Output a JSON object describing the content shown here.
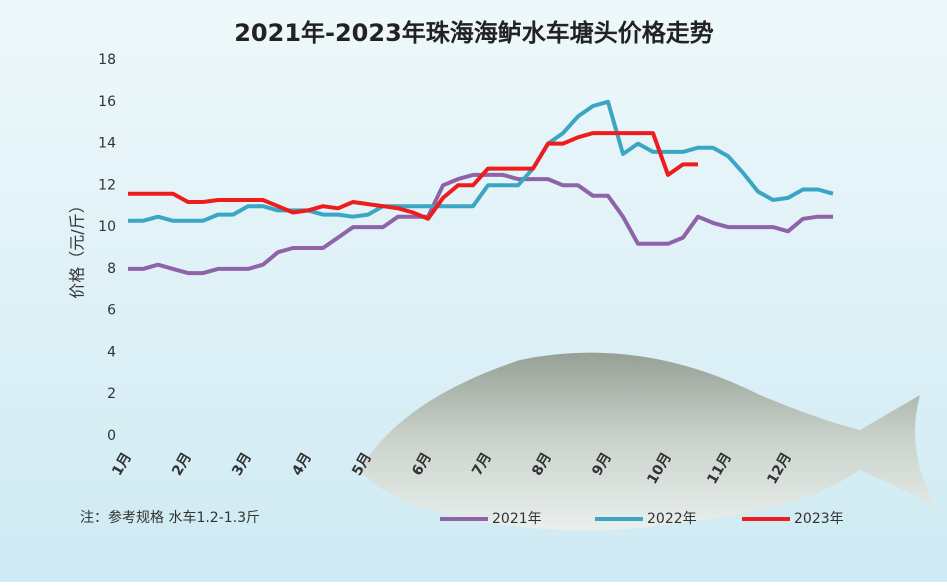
{
  "chart_data": {
    "type": "line",
    "title": "2021年-2023年珠海海鲈水车塘头价格走势",
    "y_label": "价格（元/斤）",
    "note": "注：参考规格  水车1.2-1.3斤",
    "categories": [
      "1月",
      null,
      null,
      null,
      "2月",
      null,
      null,
      null,
      "3月",
      null,
      null,
      null,
      "4月",
      null,
      null,
      null,
      "5月",
      null,
      null,
      null,
      "6月",
      null,
      null,
      null,
      "7月",
      null,
      null,
      null,
      "8月",
      null,
      null,
      null,
      "9月",
      null,
      null,
      null,
      "10月",
      null,
      null,
      null,
      "11月",
      null,
      null,
      null,
      "12月",
      null,
      null,
      null
    ],
    "series": [
      {
        "name": "2021年",
        "color": "#8e63a8",
        "values": [
          8,
          8,
          8.2,
          8,
          7.8,
          7.8,
          8,
          8,
          8,
          8.2,
          8.8,
          9,
          9,
          9,
          9.5,
          10,
          10,
          10,
          10.5,
          10.5,
          10.5,
          12,
          12.3,
          12.5,
          12.5,
          12.5,
          12.3,
          12.3,
          12.3,
          12,
          12,
          11.5,
          11.5,
          10.5,
          9.2,
          9.2,
          9.2,
          9.5,
          10.5,
          10.2,
          10,
          10,
          10,
          10,
          9.8,
          10.4,
          10.5,
          10.5
        ]
      },
      {
        "name": "2022年",
        "color": "#3aa6c4",
        "values": [
          10.3,
          10.3,
          10.5,
          10.3,
          10.3,
          10.3,
          10.6,
          10.6,
          11,
          11,
          10.8,
          10.8,
          10.8,
          10.6,
          10.6,
          10.5,
          10.6,
          11,
          11,
          11,
          11,
          11,
          11,
          11,
          12,
          12,
          12,
          12.8,
          14,
          14.5,
          15.3,
          15.8,
          16,
          13.5,
          14,
          13.6,
          13.6,
          13.6,
          13.8,
          13.8,
          13.4,
          12.6,
          11.7,
          11.3,
          11.4,
          11.8,
          11.8,
          11.6
        ]
      },
      {
        "name": "2023年",
        "color": "#ee1c1c",
        "values": [
          11.6,
          11.6,
          11.6,
          11.6,
          11.2,
          11.2,
          11.3,
          11.3,
          11.3,
          11.3,
          11,
          10.7,
          10.8,
          11,
          10.9,
          11.2,
          11.1,
          11,
          10.9,
          10.7,
          10.4,
          11.4,
          12,
          12,
          12.8,
          12.8,
          12.8,
          12.8,
          14,
          14,
          14.3,
          14.5,
          14.5,
          14.5,
          14.5,
          14.5,
          12.5,
          13,
          13,
          null,
          null,
          null,
          null,
          null,
          null,
          null,
          null,
          null
        ]
      }
    ],
    "ylim": [
      0,
      18
    ],
    "yticks": [
      0,
      2,
      4,
      6,
      8,
      10,
      12,
      14,
      16,
      18
    ],
    "grid": false,
    "legend": "bottom"
  }
}
